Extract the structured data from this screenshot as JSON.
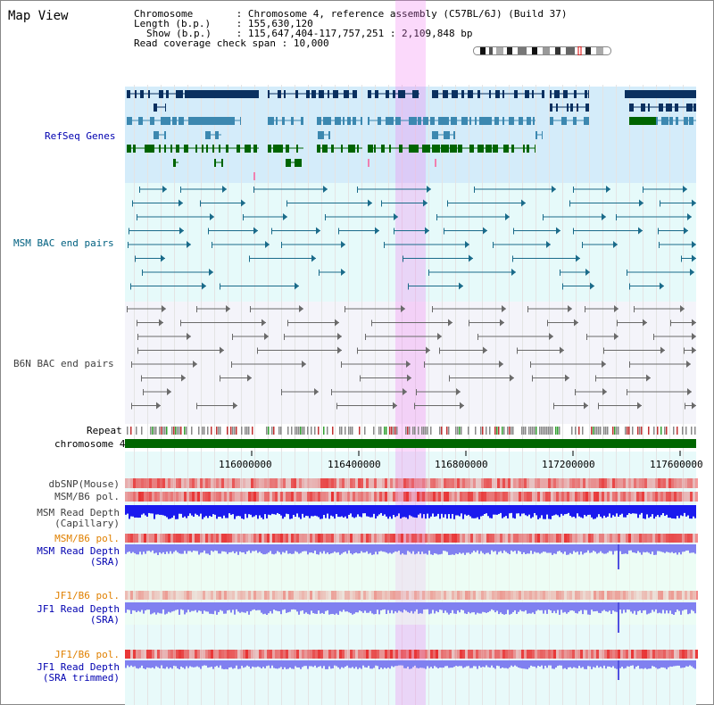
{
  "title": "Map View",
  "info": {
    "chromosome_key": "Chromosome",
    "chromosome_val": "Chromosome 4, reference assembly (C57BL/6J) (Build 37)",
    "length_key": "Length (b.p.)",
    "length_val": "155,630,120",
    "show_key": "Show (b.p.)",
    "show_val": "115,647,404-117,757,251 : 2,109,848 bp",
    "coverage_key": "Read coverage check span",
    "coverage_val": "10,000"
  },
  "tracks": {
    "refseq": "RefSeq Genes",
    "msm_bac": "MSM BAC end pairs",
    "b6n_bac": "B6N BAC end pairs",
    "repeat": "Repeat",
    "chrom": "chromosome 4",
    "dbsnp": "dbSNP(Mouse)",
    "msm_b6_pol": "MSM/B6 pol.",
    "msm_depth_cap_1": "MSM Read Depth",
    "msm_depth_cap_2": "(Capillary)",
    "msm_b6_pol2": "MSM/B6 pol.",
    "msm_depth_sra_1": "MSM Read Depth",
    "msm_depth_sra_2": "(SRA)",
    "jf1_b6_pol": "JF1/B6 pol.",
    "jf1_depth_sra_1": "JF1 Read Depth",
    "jf1_depth_sra_2": "(SRA)",
    "jf1_b6_pol2": "JF1/B6 pol.",
    "jf1_depth_trim_1": "JF1 Read Depth",
    "jf1_depth_trim_2": "(SRA trimmed)"
  },
  "axis_ticks": [
    "116000000",
    "116400000",
    "116800000",
    "117200000",
    "117600000"
  ],
  "colors": {
    "gene_dark": "#0a3060",
    "gene_mid": "#3c88b0",
    "gene_green": "#006400",
    "msm_bg": "#e6fafa",
    "b6n_bg": "#f6f6fb",
    "highlight": "#f0a0f0",
    "chrom_bar": "#006600",
    "depth_blue": "#1a1aee",
    "depth_light": "#8080f0"
  }
}
